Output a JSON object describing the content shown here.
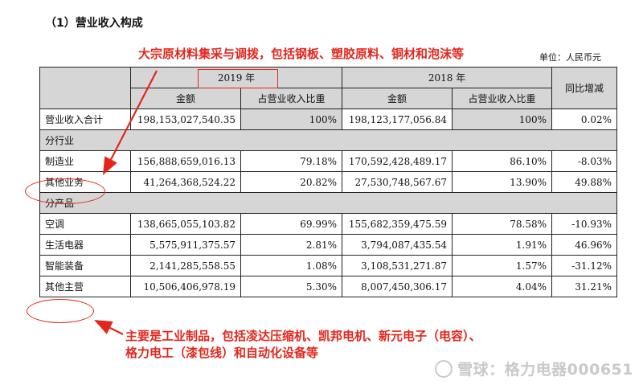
{
  "section_title": "（1）营业收入构成",
  "unit": "单位：人民币元",
  "annotations": {
    "top": "大宗原材料集采与调拨，包括钢板、塑胶原料、铜材和泡沫等",
    "bottom_line1": "主要是工业制品，包括凌达压缩机、凯邦电机、新元电子（电容）、",
    "bottom_line2": "格力电工（漆包线）和自动化设备等"
  },
  "table": {
    "header": {
      "year_2019": "2019 年",
      "year_2018": "2018 年",
      "yoy": "同比增减",
      "amount": "金额",
      "share": "占营业收入比重"
    },
    "total": {
      "label": "营业收入合计",
      "amt19": "198,153,027,540.35",
      "pct19": "100%",
      "amt18": "198,123,177,056.84",
      "pct18": "100%",
      "yoy": "0.02%"
    },
    "by_industry": {
      "title": "分行业",
      "rows": [
        {
          "label": "制造业",
          "amt19": "156,888,659,016.13",
          "pct19": "79.18%",
          "amt18": "170,592,428,489.17",
          "pct18": "86.10%",
          "yoy": "-8.03%"
        },
        {
          "label": "其他业务",
          "amt19": "41,264,368,524.22",
          "pct19": "20.82%",
          "amt18": "27,530,748,567.67",
          "pct18": "13.90%",
          "yoy": "49.88%"
        }
      ]
    },
    "by_product": {
      "title": "分产品",
      "rows": [
        {
          "label": "空调",
          "amt19": "138,665,055,103.82",
          "pct19": "69.99%",
          "amt18": "155,682,359,475.59",
          "pct18": "78.58%",
          "yoy": "-10.93%"
        },
        {
          "label": "生活电器",
          "amt19": "5,575,911,375.57",
          "pct19": "2.81%",
          "amt18": "3,794,087,435.54",
          "pct18": "1.91%",
          "yoy": "46.96%"
        },
        {
          "label": "智能装备",
          "amt19": "2,141,285,558.55",
          "pct19": "1.08%",
          "amt18": "3,108,531,271.87",
          "pct18": "1.57%",
          "yoy": "-31.12%"
        },
        {
          "label": "其他主营",
          "amt19": "10,506,406,978.19",
          "pct19": "5.30%",
          "amt18": "8,007,450,306.17",
          "pct18": "4.04%",
          "yoy": "31.21%"
        }
      ]
    }
  },
  "watermark": "雪球：格力电器000651",
  "colors": {
    "annotation": "#e3261b",
    "header_bg": "#d6d6d6"
  }
}
